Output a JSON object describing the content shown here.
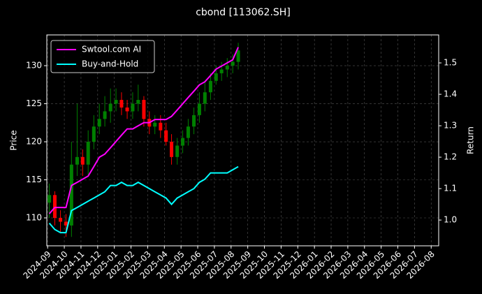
{
  "chart_data": {
    "type": "candlestick",
    "title": "cbond [113062.SH]",
    "ylabel": "Price",
    "y2label": "Return",
    "x": [
      0.1,
      0.43,
      0.77,
      1.1,
      1.43,
      1.77,
      2.1,
      2.43,
      2.77,
      3.1,
      3.43,
      3.77,
      4.1,
      4.43,
      4.77,
      5.1,
      5.43,
      5.77,
      6.1,
      6.43,
      6.77,
      7.1,
      7.43,
      7.77,
      8.1,
      8.43,
      8.77,
      9.1,
      9.43,
      9.77,
      10.1,
      10.43,
      10.77,
      11.1,
      11.43
    ],
    "open": [
      112,
      113,
      110,
      109.5,
      109,
      117,
      118,
      117,
      120,
      122,
      123,
      124,
      125,
      125.5,
      124.5,
      124,
      125,
      125.5,
      123,
      122,
      122.5,
      121.5,
      120,
      118,
      119.5,
      120.5,
      122,
      123.5,
      125,
      126.5,
      128,
      129,
      129.5,
      130,
      130.5
    ],
    "high": [
      114.5,
      113.5,
      111,
      110.5,
      120,
      125,
      119,
      121.5,
      123.5,
      125,
      126,
      127,
      127,
      126.5,
      125.5,
      126.5,
      127.5,
      126,
      124,
      123.5,
      123.5,
      122.5,
      121,
      120.5,
      121.5,
      123,
      124.5,
      126.5,
      128,
      129,
      130,
      130.5,
      131,
      131.5,
      133
    ],
    "low": [
      110,
      109,
      108,
      107.5,
      107.5,
      115.5,
      115.5,
      115.5,
      119,
      121,
      122,
      122.5,
      124,
      123.5,
      123,
      123,
      124,
      122,
      121,
      121,
      120.5,
      119.5,
      117,
      117,
      118.5,
      119.5,
      121,
      122.5,
      124,
      125.5,
      127.5,
      128,
      128.5,
      129,
      129.5
    ],
    "close": [
      113,
      110,
      109.5,
      109,
      117,
      118,
      117,
      120,
      122,
      123,
      124,
      125,
      125.5,
      124.5,
      124,
      125,
      125.5,
      123,
      122,
      122.5,
      121.5,
      120,
      118,
      119.5,
      120.5,
      122,
      123.5,
      125,
      126.5,
      128,
      129,
      129.5,
      130,
      130.5,
      132
    ],
    "up_color": "#008000",
    "down_color": "#ff0000",
    "series": [
      {
        "name": "Swtool.com AI",
        "color": "#ff00ff",
        "axis": "y2",
        "values": [
          1.02,
          1.04,
          1.04,
          1.04,
          1.11,
          1.12,
          1.13,
          1.14,
          1.17,
          1.2,
          1.21,
          1.23,
          1.25,
          1.27,
          1.29,
          1.29,
          1.3,
          1.31,
          1.31,
          1.32,
          1.32,
          1.32,
          1.33,
          1.35,
          1.37,
          1.39,
          1.41,
          1.43,
          1.44,
          1.46,
          1.48,
          1.49,
          1.5,
          1.51,
          1.55
        ]
      },
      {
        "name": "Buy-and-Hold",
        "color": "#00ffff",
        "axis": "y2",
        "values": [
          0.99,
          0.97,
          0.96,
          0.96,
          1.03,
          1.04,
          1.05,
          1.06,
          1.07,
          1.08,
          1.09,
          1.11,
          1.11,
          1.12,
          1.11,
          1.11,
          1.12,
          1.11,
          1.1,
          1.09,
          1.08,
          1.07,
          1.05,
          1.07,
          1.08,
          1.09,
          1.1,
          1.12,
          1.13,
          1.15,
          1.15,
          1.15,
          1.15,
          1.16,
          1.17
        ]
      }
    ],
    "xlim": [
      -0.05,
      23.45
    ],
    "xticks": [
      {
        "value": 0,
        "label": "2024-09"
      },
      {
        "value": 1,
        "label": "2024-10"
      },
      {
        "value": 2,
        "label": "2024-11"
      },
      {
        "value": 3,
        "label": "2024-12"
      },
      {
        "value": 4,
        "label": "2025-01"
      },
      {
        "value": 5,
        "label": "2025-02"
      },
      {
        "value": 6,
        "label": "2025-03"
      },
      {
        "value": 7,
        "label": "2025-04"
      },
      {
        "value": 8,
        "label": "2025-05"
      },
      {
        "value": 9,
        "label": "2025-06"
      },
      {
        "value": 10,
        "label": "2025-07"
      },
      {
        "value": 11,
        "label": "2025-08"
      },
      {
        "value": 12,
        "label": "2025-09"
      },
      {
        "value": 13,
        "label": "2025-10"
      },
      {
        "value": 14,
        "label": "2025-11"
      },
      {
        "value": 15,
        "label": "2025-12"
      },
      {
        "value": 16,
        "label": "2026-01"
      },
      {
        "value": 17,
        "label": "2026-02"
      },
      {
        "value": 18,
        "label": "2026-03"
      },
      {
        "value": 19,
        "label": "2026-04"
      },
      {
        "value": 20,
        "label": "2026-05"
      },
      {
        "value": 21,
        "label": "2026-06"
      },
      {
        "value": 22,
        "label": "2026-07"
      },
      {
        "value": 23,
        "label": "2026-08"
      }
    ],
    "ylim": [
      106.33,
      134.04
    ],
    "yticks": [
      110,
      115,
      120,
      125,
      130
    ],
    "y2lim": [
      0.918,
      1.589
    ],
    "y2ticks": [
      {
        "value": 1.0,
        "label": "1.0"
      },
      1.1,
      1.2,
      1.3,
      1.4,
      1.5
    ],
    "grid": true,
    "legend": "upper left"
  }
}
